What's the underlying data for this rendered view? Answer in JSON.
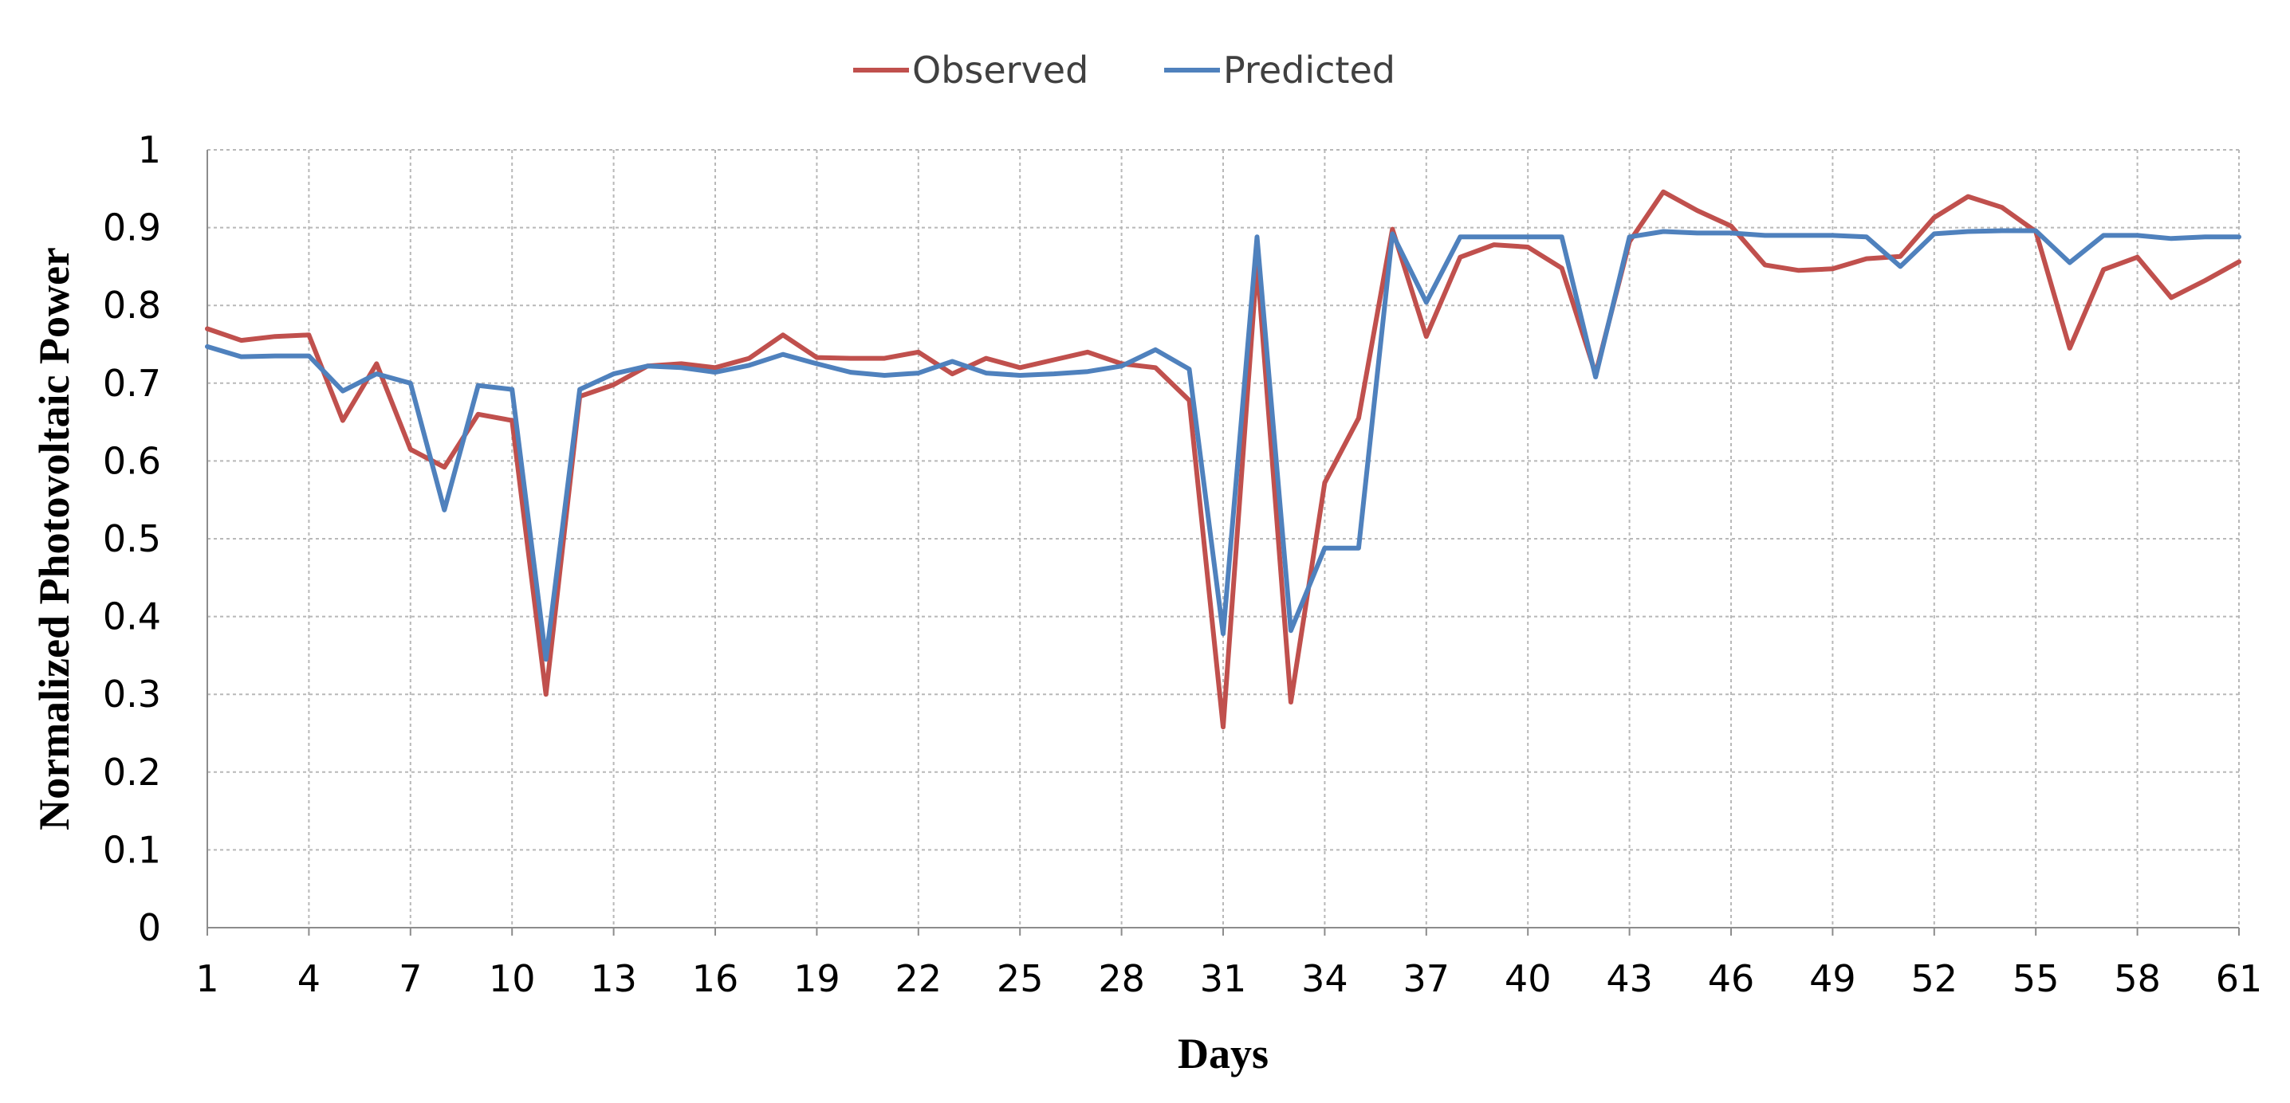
{
  "chart_data": {
    "type": "line",
    "xlabel": "Days",
    "ylabel": "Normalized Photovoltaic Power",
    "ylim": [
      0,
      1
    ],
    "yticks": [
      "0",
      "0.1",
      "0.2",
      "0.3",
      "0.4",
      "0.5",
      "0.6",
      "0.7",
      "0.8",
      "0.9",
      "1"
    ],
    "xticks": [
      "1",
      "4",
      "7",
      "10",
      "13",
      "16",
      "19",
      "22",
      "25",
      "28",
      "31",
      "34",
      "37",
      "40",
      "43",
      "46",
      "49",
      "52",
      "55",
      "58",
      "61"
    ],
    "grid": true,
    "legend_position": "top-center",
    "x": [
      1,
      2,
      3,
      4,
      5,
      6,
      7,
      8,
      9,
      10,
      11,
      12,
      13,
      14,
      15,
      16,
      17,
      18,
      19,
      20,
      21,
      22,
      23,
      24,
      25,
      26,
      27,
      28,
      29,
      30,
      31,
      32,
      33,
      34,
      35,
      36,
      37,
      38,
      39,
      40,
      41,
      42,
      43,
      44,
      45,
      46,
      47,
      48,
      49,
      50,
      51,
      52,
      53,
      54,
      55,
      56,
      57,
      58,
      59,
      60,
      61
    ],
    "series": [
      {
        "name": "Observed",
        "color": "#c0504d",
        "values": [
          0.77,
          0.755,
          0.76,
          0.762,
          0.652,
          0.725,
          0.615,
          0.592,
          0.66,
          0.652,
          0.3,
          0.683,
          0.698,
          0.722,
          0.725,
          0.72,
          0.732,
          0.762,
          0.733,
          0.732,
          0.732,
          0.74,
          0.712,
          0.732,
          0.72,
          0.73,
          0.74,
          0.725,
          0.72,
          0.678,
          0.258,
          0.855,
          0.29,
          0.572,
          0.655,
          0.898,
          0.76,
          0.862,
          0.878,
          0.875,
          0.848,
          0.712,
          0.882,
          0.946,
          0.922,
          0.902,
          0.852,
          0.845,
          0.847,
          0.86,
          0.863,
          0.913,
          0.94,
          0.926,
          0.895,
          0.745,
          0.846,
          0.862,
          0.81,
          0.832,
          0.856
        ]
      },
      {
        "name": "Predicted",
        "color": "#4f81bd",
        "values": [
          0.747,
          0.734,
          0.735,
          0.735,
          0.69,
          0.712,
          0.7,
          0.537,
          0.697,
          0.692,
          0.345,
          0.692,
          0.712,
          0.722,
          0.72,
          0.714,
          0.723,
          0.737,
          0.725,
          0.714,
          0.71,
          0.713,
          0.728,
          0.713,
          0.71,
          0.712,
          0.715,
          0.722,
          0.743,
          0.718,
          0.378,
          0.888,
          0.382,
          0.488,
          0.488,
          0.892,
          0.804,
          0.888,
          0.888,
          0.888,
          0.888,
          0.708,
          0.888,
          0.895,
          0.893,
          0.893,
          0.89,
          0.89,
          0.89,
          0.888,
          0.85,
          0.892,
          0.895,
          0.896,
          0.896,
          0.855,
          0.89,
          0.89,
          0.886,
          0.888,
          0.888
        ]
      }
    ]
  }
}
